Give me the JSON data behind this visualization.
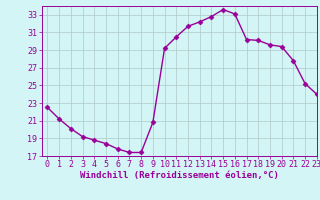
{
  "x": [
    0,
    1,
    2,
    3,
    4,
    5,
    6,
    7,
    8,
    9,
    10,
    11,
    12,
    13,
    14,
    15,
    16,
    17,
    18,
    19,
    20,
    21,
    22,
    23
  ],
  "y": [
    22.5,
    21.2,
    20.1,
    19.2,
    18.8,
    18.4,
    17.8,
    17.4,
    17.4,
    20.8,
    29.2,
    30.5,
    31.7,
    32.2,
    32.8,
    33.6,
    33.1,
    30.2,
    30.1,
    29.6,
    29.4,
    27.8,
    25.2,
    24.0
  ],
  "line_color": "#990099",
  "marker": "D",
  "marker_size": 2.5,
  "bg_color": "#d4f5f5",
  "grid_color": "#b0c8c8",
  "xlabel": "Windchill (Refroidissement éolien,°C)",
  "ylim": [
    17,
    34
  ],
  "xlim": [
    -0.5,
    23
  ],
  "yticks": [
    17,
    19,
    21,
    23,
    25,
    27,
    29,
    31,
    33
  ],
  "xticks": [
    0,
    1,
    2,
    3,
    4,
    5,
    6,
    7,
    8,
    9,
    10,
    11,
    12,
    13,
    14,
    15,
    16,
    17,
    18,
    19,
    20,
    21,
    22,
    23
  ],
  "xlabel_fontsize": 6.5,
  "tick_fontsize": 6.0,
  "line_width": 1.0
}
